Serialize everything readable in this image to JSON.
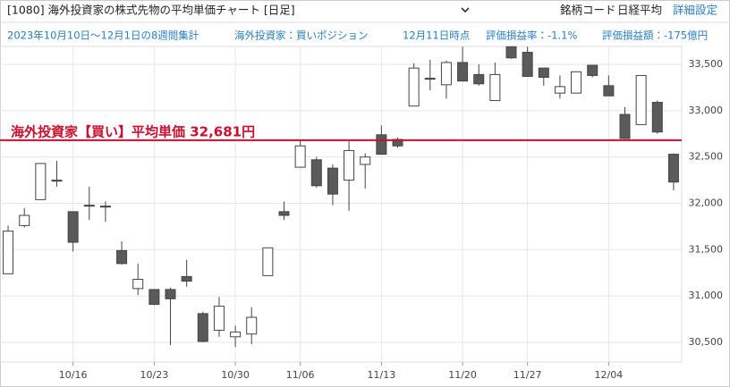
{
  "header": {
    "title": "[1080] 海外投資家の株式先物の平均単価チャート [日足]",
    "code_label": "銘柄コード",
    "code_value": "日経平均",
    "settings": "詳細設定"
  },
  "info": [
    "2023年10月10日～12月1日の8週間集計",
    "海外投資家：買いポジション",
    "12月11日時点",
    "評価損益率：-1.1%",
    "評価損益額：-175億円"
  ],
  "chart_data": {
    "type": "candlestick",
    "categories": [
      null,
      null,
      null,
      null,
      "10/16",
      null,
      null,
      null,
      null,
      "10/23",
      null,
      null,
      null,
      null,
      "10/30",
      null,
      null,
      null,
      "11/06",
      null,
      null,
      null,
      null,
      "11/13",
      null,
      null,
      null,
      null,
      "11/20",
      null,
      null,
      null,
      "11/27",
      null,
      null,
      null,
      null,
      "12/04",
      null,
      null,
      null,
      null
    ],
    "open": [
      31240,
      31760,
      32040,
      32250,
      31910,
      31980,
      31970,
      31490,
      31080,
      31070,
      31070,
      31210,
      30810,
      30630,
      30560,
      30590,
      31220,
      31910,
      32390,
      32470,
      32380,
      32250,
      32420,
      32740,
      32690,
      33050,
      33350,
      33280,
      33520,
      33390,
      33110,
      33690,
      33630,
      33460,
      33190,
      33190,
      33490,
      33270,
      32960,
      32850,
      33090,
      32530
    ],
    "high": [
      31760,
      31950,
      32430,
      32460,
      31910,
      32180,
      32020,
      31590,
      31350,
      31070,
      31090,
      31390,
      30830,
      30990,
      30680,
      30880,
      31520,
      32020,
      32690,
      32500,
      32420,
      32670,
      32540,
      32840,
      32710,
      33510,
      33550,
      33540,
      33690,
      33500,
      33520,
      33690,
      33690,
      33460,
      33380,
      33420,
      33490,
      33380,
      33040,
      33380,
      33110,
      32540
    ],
    "low": [
      31240,
      31740,
      32040,
      32180,
      31480,
      31820,
      31800,
      31340,
      31010,
      30900,
      30470,
      31100,
      30500,
      30560,
      30450,
      30480,
      31220,
      31820,
      32390,
      32170,
      31980,
      31920,
      32160,
      32530,
      32600,
      33050,
      33220,
      33130,
      33320,
      33270,
      33110,
      33560,
      33370,
      33270,
      33130,
      33190,
      33360,
      33160,
      32700,
      32850,
      32750,
      32140
    ],
    "close": [
      31700,
      31870,
      32430,
      32240,
      31580,
      31970,
      31960,
      31350,
      31180,
      30910,
      30970,
      31160,
      30510,
      30890,
      30610,
      30770,
      31520,
      31870,
      32620,
      32190,
      32100,
      32570,
      32500,
      32530,
      32620,
      33460,
      33340,
      33520,
      33320,
      33290,
      33390,
      33570,
      33370,
      33360,
      33260,
      33420,
      33380,
      33160,
      32700,
      33380,
      32770,
      32230
    ],
    "up_color": "#ffffff",
    "down_color": "#5a5a5a",
    "ylim": [
      30288,
      33693
    ],
    "yticks": [
      {
        "value": 30500,
        "label": "30,500"
      },
      {
        "value": 31000,
        "label": "31,000"
      },
      {
        "value": 31500,
        "label": "31,500"
      },
      {
        "value": 32000,
        "label": "32,000"
      },
      {
        "value": 32500,
        "label": "32,500"
      },
      {
        "value": 33000,
        "label": "33,000"
      },
      {
        "value": 33500,
        "label": "33,500"
      }
    ],
    "grid": true,
    "reference_line": {
      "text": "海外投資家【買い】平均単価 32,681円",
      "value": 32681,
      "color": "#c8102e"
    }
  }
}
